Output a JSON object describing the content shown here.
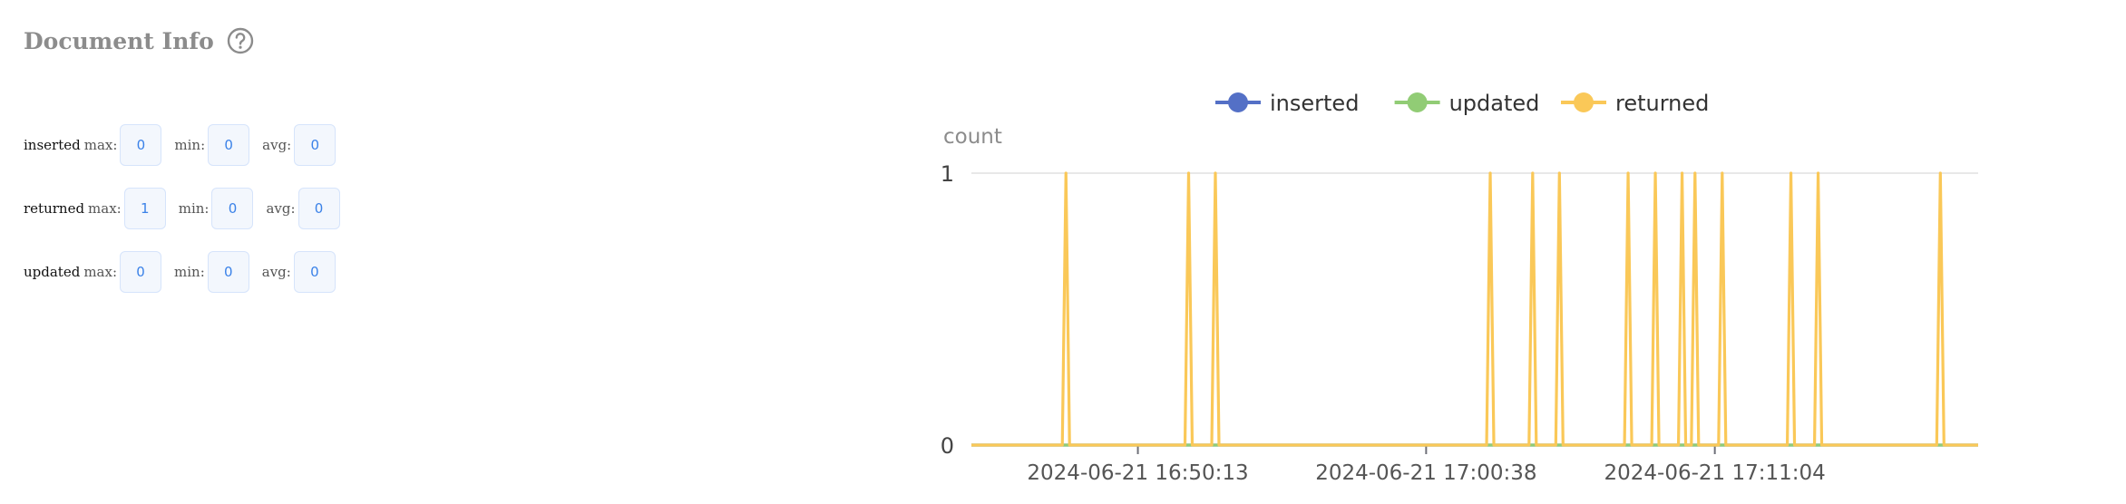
{
  "panel": {
    "title": "Document Info",
    "help_icon": "question-circle-icon"
  },
  "stats": [
    {
      "name": "inserted",
      "max_label": "max:",
      "max": "0",
      "min_label": "min:",
      "min": "0",
      "avg_label": "avg:",
      "avg": "0"
    },
    {
      "name": "returned",
      "max_label": "max:",
      "max": "1",
      "min_label": "min:",
      "min": "0",
      "avg_label": "avg:",
      "avg": "0"
    },
    {
      "name": "updated",
      "max_label": "max:",
      "max": "0",
      "min_label": "min:",
      "min": "0",
      "avg_label": "avg:",
      "avg": "0"
    }
  ],
  "chart_data": {
    "type": "line",
    "ylabel": "count",
    "ylim": [
      0,
      1
    ],
    "yticks": [
      "0",
      "1"
    ],
    "xlim": [
      "2024-06-21 16:44:12",
      "2024-06-21 17:20:35"
    ],
    "xticks": [
      "2024-06-21 16:50:13",
      "2024-06-21 17:00:38",
      "2024-06-21 17:11:04"
    ],
    "legend_position": "top-center",
    "grid": true,
    "series": [
      {
        "name": "inserted",
        "color": "#5470c6",
        "points": []
      },
      {
        "name": "updated",
        "color": "#91cc75",
        "points": []
      },
      {
        "name": "returned",
        "color": "#fac858",
        "points": [
          {
            "x": "2024-06-21 16:47:37",
            "y": 1
          },
          {
            "x": "2024-06-21 16:52:03",
            "y": 1
          },
          {
            "x": "2024-06-21 16:53:01",
            "y": 1
          },
          {
            "x": "2024-06-21 17:02:57",
            "y": 1
          },
          {
            "x": "2024-06-21 17:04:29",
            "y": 1
          },
          {
            "x": "2024-06-21 17:05:27",
            "y": 1
          },
          {
            "x": "2024-06-21 17:07:56",
            "y": 1
          },
          {
            "x": "2024-06-21 17:08:55",
            "y": 1
          },
          {
            "x": "2024-06-21 17:09:53",
            "y": 1
          },
          {
            "x": "2024-06-21 17:10:21",
            "y": 1
          },
          {
            "x": "2024-06-21 17:11:20",
            "y": 1
          },
          {
            "x": "2024-06-21 17:13:49",
            "y": 1
          },
          {
            "x": "2024-06-21 17:14:48",
            "y": 1
          },
          {
            "x": "2024-06-21 17:19:13",
            "y": 1
          }
        ]
      }
    ]
  }
}
